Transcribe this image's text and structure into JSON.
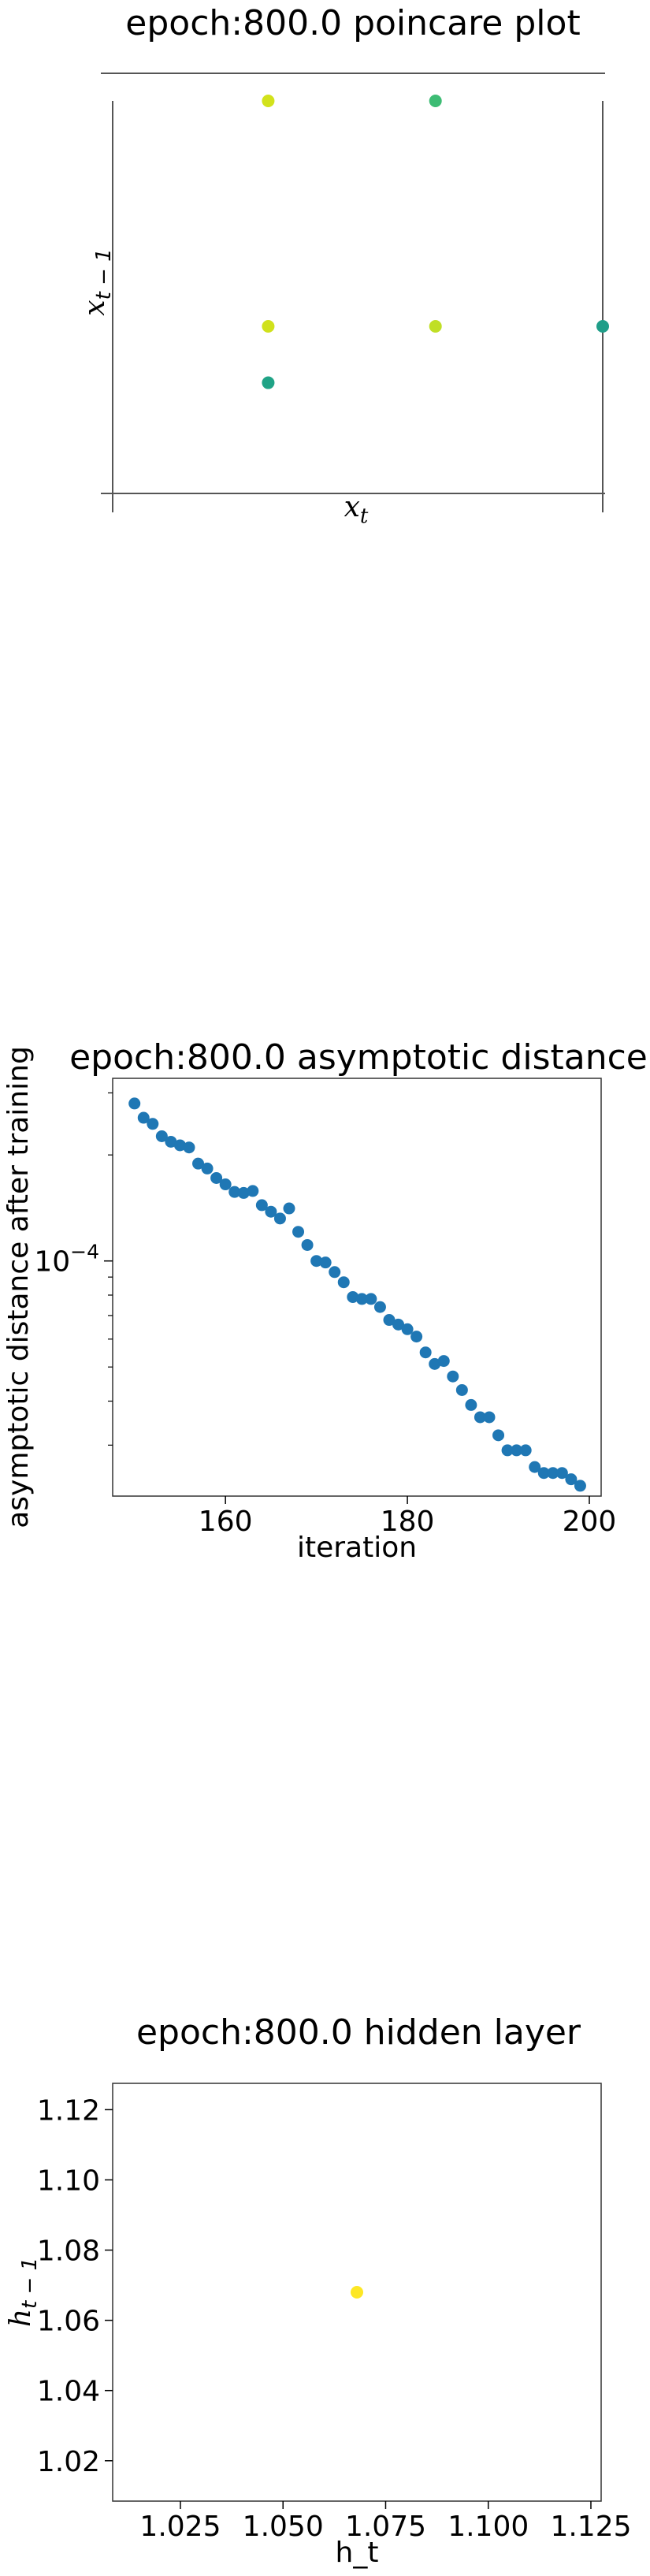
{
  "chart_data": [
    {
      "type": "scatter",
      "title": "epoch:800.0 poincare plot",
      "xlabel": "x_t",
      "ylabel": "x_{t-1}",
      "grid": false,
      "points": [
        {
          "x": 1,
          "y": 3,
          "color": "#d2e21b"
        },
        {
          "x": 2,
          "y": 3,
          "color": "#3dbc74"
        },
        {
          "x": 1,
          "y": 1,
          "color": "#d0e11c"
        },
        {
          "x": 2,
          "y": 1,
          "color": "#c0df25"
        },
        {
          "x": 3,
          "y": 1,
          "color": "#1f9e89"
        },
        {
          "x": 1,
          "y": 0.5,
          "color": "#20a386"
        }
      ],
      "xlim": [
        0.07,
        3.0
      ],
      "ylim": [
        -0.65,
        3.0
      ]
    },
    {
      "type": "scatter",
      "title": "epoch:800.0 asymptotic distance",
      "xlabel": "iteration",
      "ylabel": "asymptotic distance after training",
      "ylog": true,
      "color": "#1f77b4",
      "x": [
        150,
        151,
        152,
        153,
        154,
        155,
        156,
        157,
        158,
        159,
        160,
        161,
        162,
        163,
        164,
        165,
        166,
        167,
        168,
        169,
        170,
        171,
        172,
        173,
        174,
        175,
        176,
        177,
        178,
        179,
        180,
        181,
        182,
        183,
        184,
        185,
        186,
        187,
        188,
        189,
        190,
        191,
        192,
        193,
        194,
        195,
        196,
        197,
        198,
        199
      ],
      "y": [
        0.00028,
        0.000255,
        0.000245,
        0.000226,
        0.000218,
        0.000213,
        0.00021,
        0.000189,
        0.000183,
        0.000172,
        0.000165,
        0.000157,
        0.000156,
        0.000158,
        0.000144,
        0.000138,
        0.000132,
        0.000141,
        0.000121,
        0.000111,
        0.0001,
        9.9e-05,
        9.3e-05,
        8.7e-05,
        7.9e-05,
        7.8e-05,
        7.8e-05,
        7.4e-05,
        6.8e-05,
        6.6e-05,
        6.4e-05,
        6.1e-05,
        5.5e-05,
        5.1e-05,
        5.2e-05,
        4.7e-05,
        4.3e-05,
        3.9e-05,
        3.6e-05,
        3.6e-05,
        3.2e-05,
        2.9e-05,
        2.9e-05,
        2.9e-05,
        2.6e-05,
        2.5e-05,
        2.5e-05,
        2.5e-05,
        2.4e-05,
        2.3e-05
      ],
      "xlim": [
        147.6,
        201.3
      ],
      "xticks": [
        160,
        180,
        200
      ],
      "ylim": [
        2.15e-05,
        0.00033
      ],
      "ytick_label": {
        "base": "10",
        "exp": "−4",
        "value": 0.0001
      }
    },
    {
      "type": "scatter",
      "title": "epoch:800.0 hidden layer",
      "xlabel": "h_t",
      "ylabel": "h_{t-1}",
      "points": [
        {
          "x": 1.068,
          "y": 1.068,
          "color": "#fde725"
        }
      ],
      "xlim": [
        1.0085,
        1.1275
      ],
      "ylim": [
        1.0085,
        1.1275
      ],
      "xticks": [
        "1.025",
        "1.050",
        "1.075",
        "1.100",
        "1.125"
      ],
      "yticks": [
        "1.02",
        "1.04",
        "1.06",
        "1.08",
        "1.10",
        "1.12"
      ]
    }
  ]
}
